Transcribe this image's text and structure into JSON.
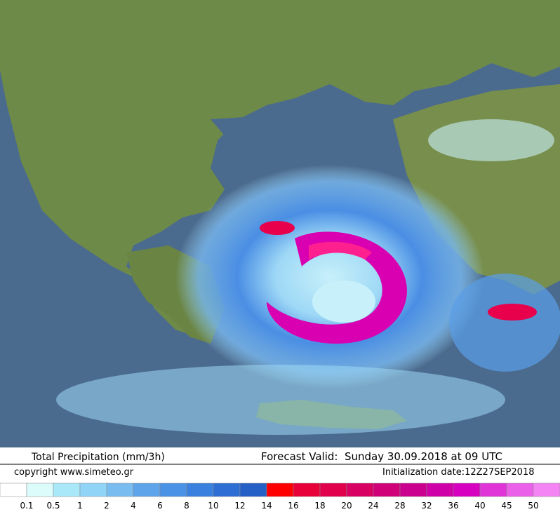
{
  "header": {
    "title": "Total Precipitation (mm/3h)",
    "forecast": "Forecast Valid:  Sunday 30.09.2018 at 09 UTC",
    "copyright": "copyright www.simeteo.gr",
    "initialization": "Initialization date:12Z27SEP2018"
  },
  "legend": {
    "colors": [
      "#ffffff",
      "#dcfcfc",
      "#a8e8f8",
      "#90d4f8",
      "#78bcf0",
      "#5ea4ea",
      "#4a92e6",
      "#3a80de",
      "#2e6ed4",
      "#2460c6",
      "#ff0000",
      "#e80038",
      "#e0004c",
      "#d80062",
      "#d00078",
      "#cc008e",
      "#d000a8",
      "#d800c0",
      "#e034d8",
      "#ea60e8",
      "#f484f4"
    ],
    "labels": [
      0.1,
      0.5,
      1,
      2,
      4,
      6,
      8,
      10,
      12,
      14,
      16,
      18,
      20,
      24,
      28,
      32,
      36,
      40,
      45,
      50
    ]
  }
}
